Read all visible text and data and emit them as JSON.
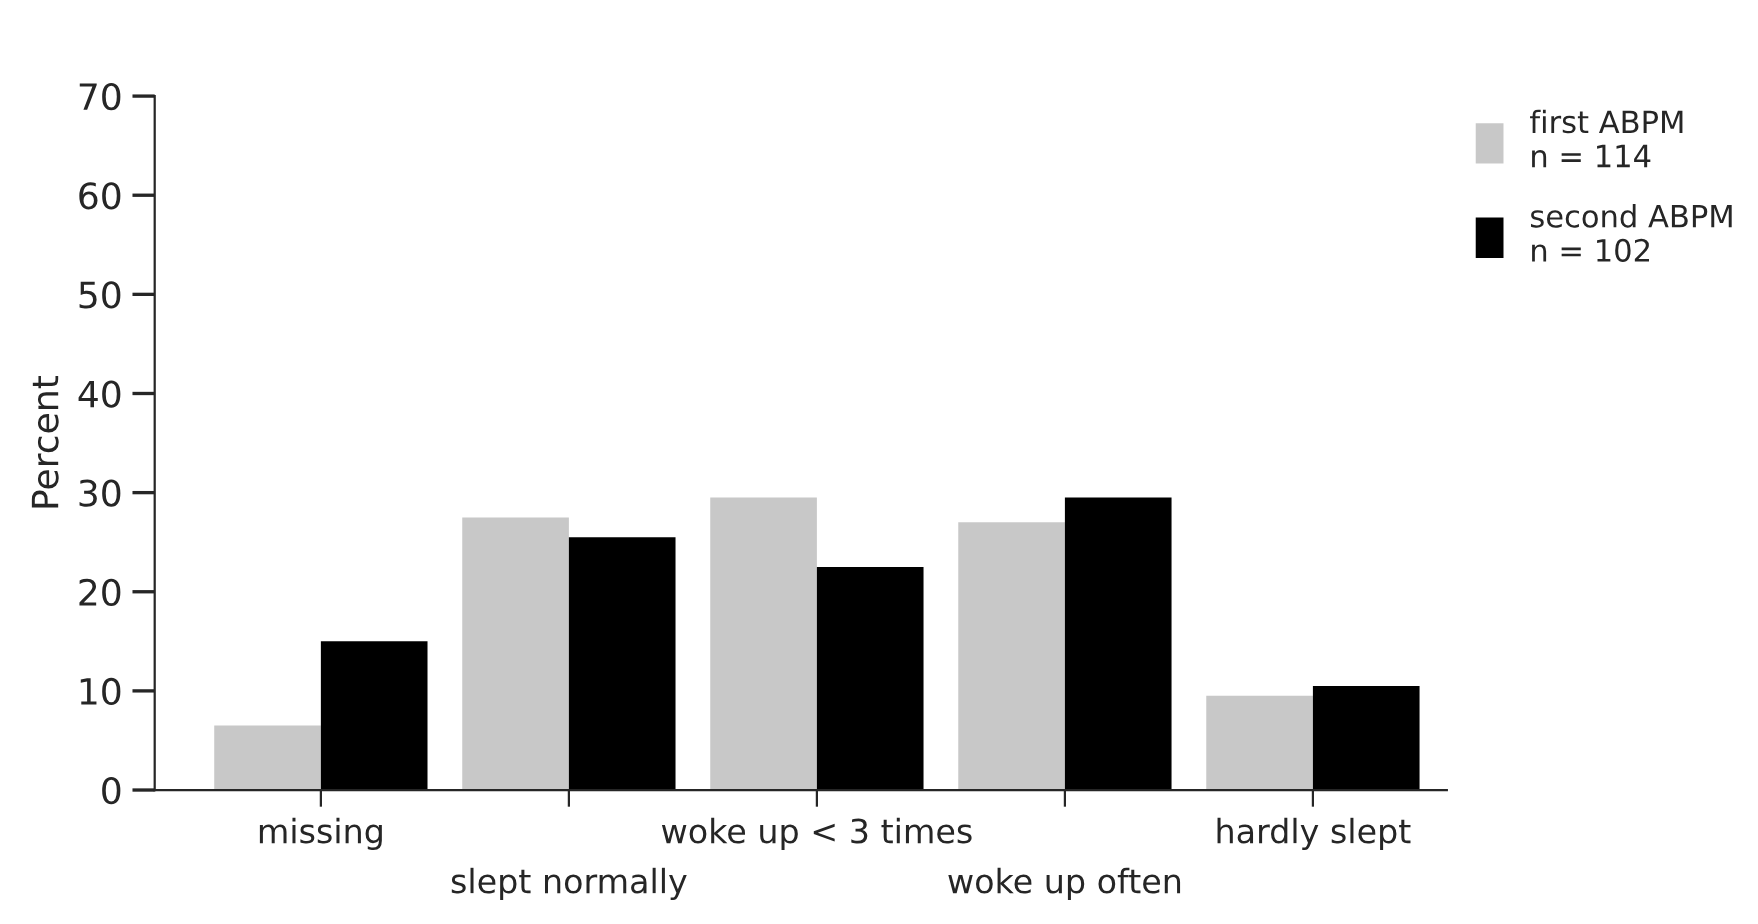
{
  "chart_data": {
    "type": "bar",
    "ylabel": "Percent",
    "categories": [
      "missing",
      "slept normally",
      "woke up < 3 times",
      "woke up often",
      "hardly slept"
    ],
    "series": [
      {
        "name": "first ABPM\nn = 114",
        "color": "#c8c8c8",
        "values": [
          6.5,
          27.5,
          29.5,
          27,
          9.5
        ]
      },
      {
        "name": "second ABPM\nn = 102",
        "color": "#000000",
        "values": [
          15,
          25.5,
          22.5,
          29.5,
          10.5
        ]
      }
    ],
    "ylim": [
      0,
      70
    ],
    "yticks": [
      0,
      10,
      20,
      30,
      40,
      50,
      60,
      70
    ],
    "grid": false,
    "legend": "top right"
  }
}
